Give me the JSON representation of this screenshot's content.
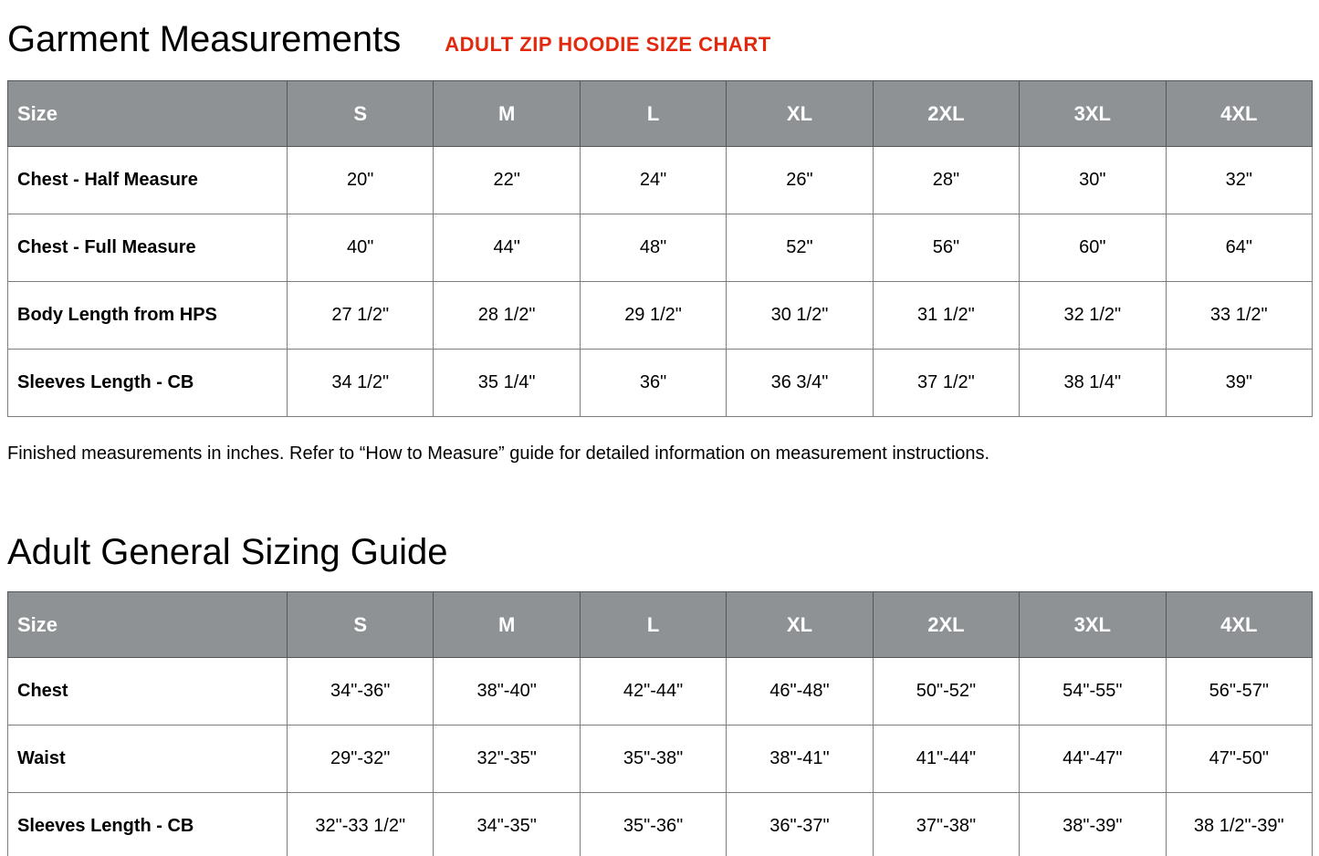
{
  "header": {
    "title": "Garment Measurements",
    "badge": "ADULT ZIP HOODIE SIZE CHART"
  },
  "note": "Finished measurements in inches. Refer to “How to Measure” guide for detailed information on measurement instructions.",
  "section2": {
    "title": "Adult General Sizing Guide"
  },
  "colors": {
    "table_header_bg": "#8f9294",
    "table_header_text": "#ffffff",
    "accent_red": "#e2290e",
    "cell_border": "#7d7d7d"
  },
  "chart_data": [
    {
      "type": "table",
      "title": "Garment Measurements",
      "columns": [
        "Size",
        "S",
        "M",
        "L",
        "XL",
        "2XL",
        "3XL",
        "4XL"
      ],
      "rows": [
        {
          "label": "Chest - Half Measure",
          "values": [
            "20\"",
            "22\"",
            "24\"",
            "26\"",
            "28\"",
            "30\"",
            "32\""
          ]
        },
        {
          "label": "Chest - Full Measure",
          "values": [
            "40\"",
            "44\"",
            "48\"",
            "52\"",
            "56\"",
            "60\"",
            "64\""
          ]
        },
        {
          "label": "Body Length from HPS",
          "values": [
            "27 1/2\"",
            "28 1/2\"",
            "29 1/2\"",
            "30 1/2\"",
            "31 1/2\"",
            "32 1/2\"",
            "33 1/2\""
          ]
        },
        {
          "label": "Sleeves Length - CB",
          "values": [
            "34 1/2\"",
            "35 1/4\"",
            "36\"",
            "36 3/4\"",
            "37 1/2\"",
            "38 1/4\"",
            "39\""
          ]
        }
      ]
    },
    {
      "type": "table",
      "title": "Adult General Sizing Guide",
      "columns": [
        "Size",
        "S",
        "M",
        "L",
        "XL",
        "2XL",
        "3XL",
        "4XL"
      ],
      "rows": [
        {
          "label": "Chest",
          "values": [
            "34\"-36\"",
            "38\"-40\"",
            "42\"-44\"",
            "46\"-48\"",
            "50\"-52\"",
            "54\"-55\"",
            "56\"-57\""
          ]
        },
        {
          "label": "Waist",
          "values": [
            "29\"-32\"",
            "32\"-35\"",
            "35\"-38\"",
            "38\"-41\"",
            "41\"-44\"",
            "44\"-47\"",
            "47\"-50\""
          ]
        },
        {
          "label": "Sleeves Length - CB",
          "values": [
            "32\"-33 1/2\"",
            "34\"-35\"",
            "35\"-36\"",
            "36\"-37\"",
            "37\"-38\"",
            "38\"-39\"",
            "38 1/2\"-39\""
          ]
        }
      ]
    }
  ]
}
